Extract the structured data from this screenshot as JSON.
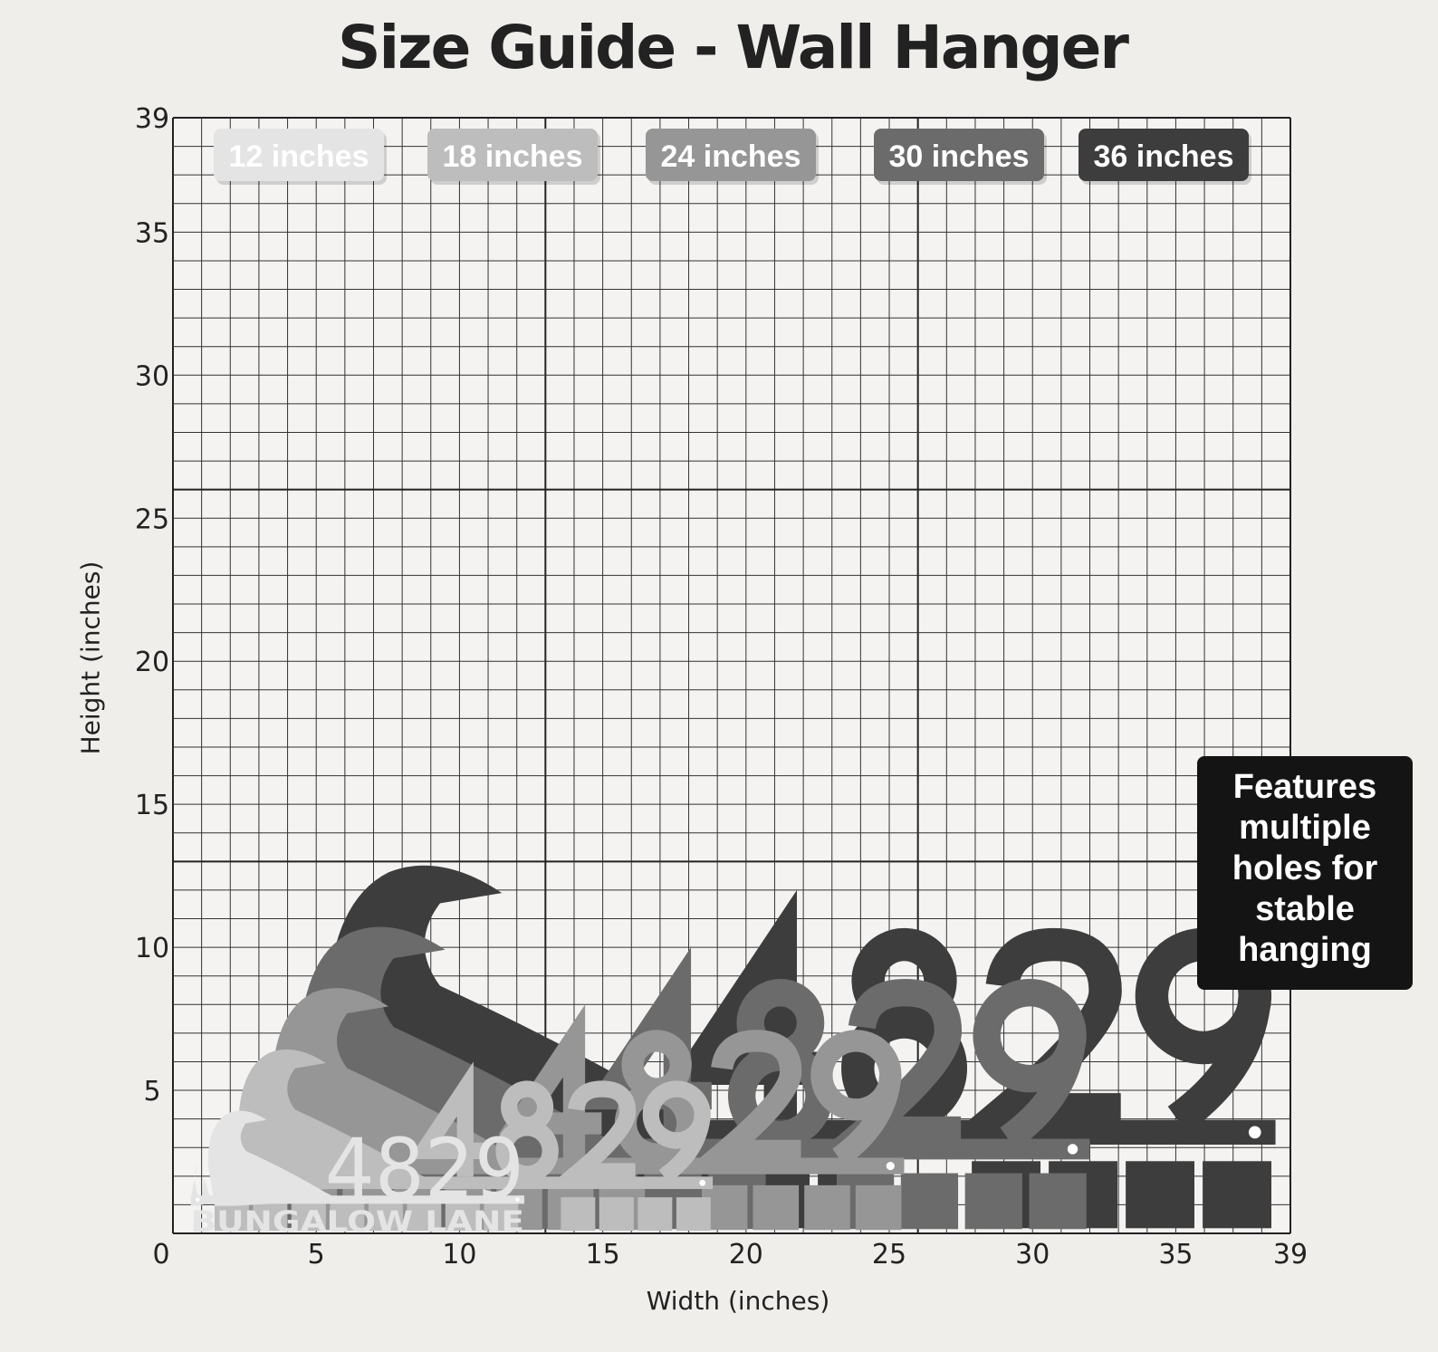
{
  "title": "Size Guide - Wall Hanger",
  "x_axis": {
    "label": "Width (inches)",
    "ticks": [
      0,
      5,
      10,
      15,
      20,
      25,
      30,
      35,
      39
    ],
    "range": [
      0,
      39
    ]
  },
  "y_axis": {
    "label": "Height (inches)",
    "ticks": [
      0,
      5,
      10,
      15,
      20,
      25,
      30,
      35,
      39
    ],
    "range": [
      0,
      39
    ]
  },
  "grid": {
    "minor_step_inches": 1,
    "major_step_inches": 13
  },
  "sizes": [
    {
      "label": "12 inches",
      "inches": 12,
      "color": "#e4e4e4"
    },
    {
      "label": "18 inches",
      "inches": 18,
      "color": "#bdbdbd"
    },
    {
      "label": "24 inches",
      "inches": 24,
      "color": "#969696"
    },
    {
      "label": "30 inches",
      "inches": 30,
      "color": "#6b6b6b"
    },
    {
      "label": "36 inches",
      "inches": 36,
      "color": "#3d3d3d"
    }
  ],
  "sign": {
    "number": "4829",
    "street": "BUNGALOW LANE"
  },
  "callout": {
    "lines": [
      "Features",
      "multiple",
      "holes for",
      "stable",
      "hanging"
    ]
  }
}
